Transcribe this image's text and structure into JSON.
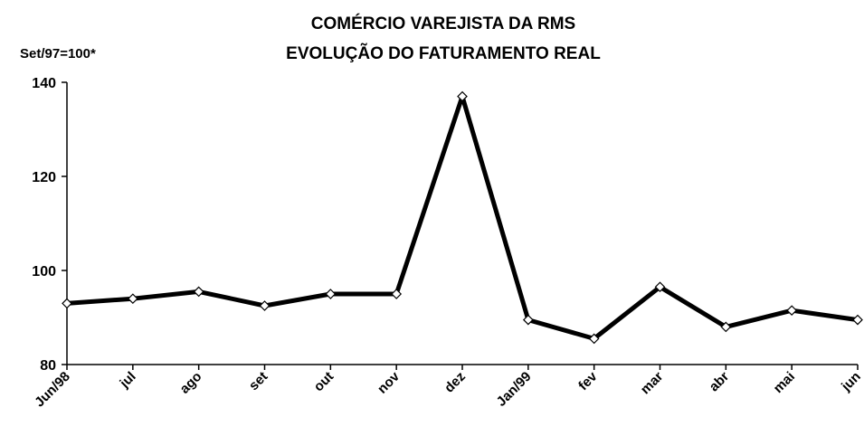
{
  "chart_data": {
    "type": "line",
    "title": "COMÉRCIO VAREJISTA DA RMS",
    "subtitle": "EVOLUÇÃO DO FATURAMENTO REAL",
    "ylabel": "Set/97=100*",
    "categories": [
      "Jun/98",
      "jul",
      "ago",
      "set",
      "out",
      "nov",
      "dez",
      "Jan/99",
      "fev",
      "mar",
      "abr",
      "mai",
      "jun"
    ],
    "values": [
      93,
      94,
      95.5,
      92.5,
      95,
      95,
      137,
      89.5,
      85.5,
      96.5,
      88,
      91.5,
      89.5
    ],
    "color": "#000000",
    "ylim": [
      80,
      140
    ],
    "yticks": [
      80,
      100,
      120,
      140
    ],
    "grid": false
  }
}
